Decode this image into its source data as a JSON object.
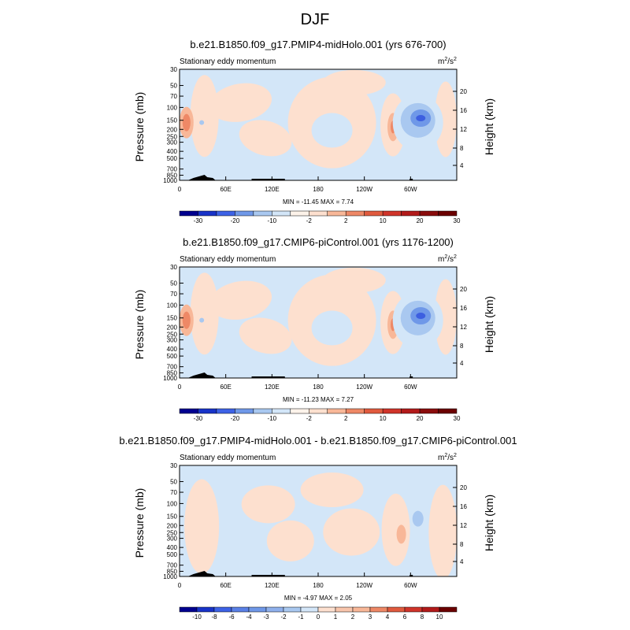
{
  "page_title": "DJF",
  "colors": {
    "pos1": "#fde0cf",
    "pos2": "#f8b798",
    "pos3": "#ee8866",
    "pos4": "#e05a3e",
    "neg1": "#d3e6f8",
    "neg2": "#a9c8f0",
    "neg3": "#6f98e8",
    "neg4": "#3d5fe0",
    "terrain": "#000000"
  },
  "chart_data": [
    {
      "type": "heatmap",
      "title": "b.e21.B1850.f09_g17.PMIP4-midHolo.001 (yrs 676-700)",
      "subtitle_left": "Stationary eddy momentum",
      "units": "m²/s²",
      "units_base": "m",
      "units_exp1": "2",
      "units_mid": "/s",
      "units_exp2": "2",
      "ylabel": "Pressure (mb)",
      "y2label": "Height (km)",
      "x_ticks": [
        "0",
        "60E",
        "120E",
        "180",
        "120W",
        "60W"
      ],
      "y_ticks": [
        "30",
        "50",
        "70",
        "100",
        "150",
        "200",
        "250",
        "300",
        "400",
        "500",
        "700",
        "850",
        "1000"
      ],
      "y2_ticks": [
        "20",
        "16",
        "12",
        "8",
        "4"
      ],
      "min_max": "MIN = -11.45   MAX =   7.74",
      "min": -11.45,
      "max": 7.74,
      "colorbar_labels": [
        "-30",
        "-20",
        "-10",
        "-2",
        "2",
        "10",
        "20",
        "30"
      ]
    },
    {
      "type": "heatmap",
      "title": "b.e21.B1850.f09_g17.CMIP6-piControl.001 (yrs 1176-1200)",
      "subtitle_left": "Stationary eddy momentum",
      "units": "m²/s²",
      "units_base": "m",
      "units_exp1": "2",
      "units_mid": "/s",
      "units_exp2": "2",
      "ylabel": "Pressure (mb)",
      "y2label": "Height (km)",
      "x_ticks": [
        "0",
        "60E",
        "120E",
        "180",
        "120W",
        "60W"
      ],
      "y_ticks": [
        "30",
        "50",
        "70",
        "100",
        "150",
        "200",
        "250",
        "300",
        "400",
        "500",
        "700",
        "850",
        "1000"
      ],
      "y2_ticks": [
        "20",
        "16",
        "12",
        "8",
        "4"
      ],
      "min_max": "MIN = -11.23   MAX =   7.27",
      "min": -11.23,
      "max": 7.27,
      "colorbar_labels": [
        "-30",
        "-20",
        "-10",
        "-2",
        "2",
        "10",
        "20",
        "30"
      ]
    },
    {
      "type": "heatmap",
      "title": "b.e21.B1850.f09_g17.PMIP4-midHolo.001 - b.e21.B1850.f09_g17.CMIP6-piControl.001",
      "subtitle_left": "Stationary eddy momentum",
      "units": "m²/s²",
      "units_base": "m",
      "units_exp1": "2",
      "units_mid": "/s",
      "units_exp2": "2",
      "ylabel": "Pressure (mb)",
      "y2label": "Height (km)",
      "x_ticks": [
        "0",
        "60E",
        "120E",
        "180",
        "120W",
        "60W"
      ],
      "y_ticks": [
        "30",
        "50",
        "70",
        "100",
        "150",
        "200",
        "250",
        "300",
        "400",
        "500",
        "700",
        "850",
        "1000"
      ],
      "y2_ticks": [
        "20",
        "16",
        "12",
        "8",
        "4"
      ],
      "min_max": "MIN =  -4.97   MAX =   2.05",
      "min": -4.97,
      "max": 2.05,
      "colorbar_labels": [
        "-10",
        "-8",
        "-6",
        "-4",
        "-3",
        "-2",
        "-1",
        "0",
        "1",
        "2",
        "3",
        "4",
        "6",
        "8",
        "10"
      ]
    }
  ]
}
